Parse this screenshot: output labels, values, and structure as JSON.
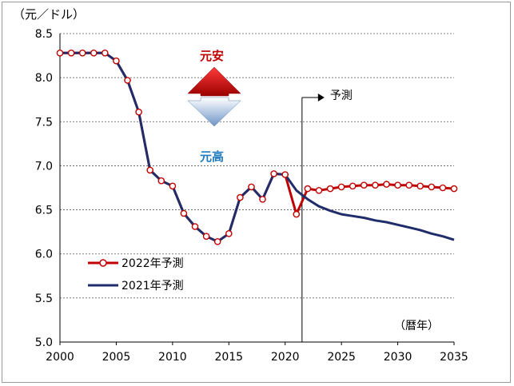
{
  "chart_data": {
    "type": "line",
    "unit_label": "（元／ドル）",
    "xlabel_note": "（暦年）",
    "xlim": [
      2000,
      2035
    ],
    "ylim": [
      5.0,
      8.5
    ],
    "xticks": [
      "2000",
      "2005",
      "2010",
      "2015",
      "2020",
      "2025",
      "2030",
      "2035"
    ],
    "yticks": [
      "5.0",
      "5.5",
      "6.0",
      "6.5",
      "7.0",
      "7.5",
      "8.0",
      "8.5"
    ],
    "grid": "horizontal dotted",
    "forecast_start": 2021.5,
    "forecast_label": "予測",
    "annotations": {
      "up": "元安",
      "down": "元高"
    },
    "series": [
      {
        "name": "2022年予測",
        "color": "#c00000",
        "marker": "open-circle",
        "x": [
          2000,
          2001,
          2002,
          2003,
          2004,
          2005,
          2006,
          2007,
          2008,
          2009,
          2010,
          2011,
          2012,
          2013,
          2014,
          2015,
          2016,
          2017,
          2018,
          2019,
          2020,
          2021,
          2022,
          2023,
          2024,
          2025,
          2026,
          2027,
          2028,
          2029,
          2030,
          2031,
          2032,
          2033,
          2034,
          2035
        ],
        "values": [
          8.28,
          8.28,
          8.28,
          8.28,
          8.28,
          8.19,
          7.97,
          7.61,
          6.95,
          6.83,
          6.77,
          6.46,
          6.31,
          6.2,
          6.14,
          6.23,
          6.64,
          6.76,
          6.62,
          6.91,
          6.9,
          6.45,
          6.74,
          6.72,
          6.74,
          6.76,
          6.77,
          6.78,
          6.78,
          6.79,
          6.78,
          6.78,
          6.77,
          6.76,
          6.75,
          6.74
        ]
      },
      {
        "name": "2021年予測",
        "color": "#1f2d6b",
        "marker": "none",
        "x": [
          2000,
          2001,
          2002,
          2003,
          2004,
          2005,
          2006,
          2007,
          2008,
          2009,
          2010,
          2011,
          2012,
          2013,
          2014,
          2015,
          2016,
          2017,
          2018,
          2019,
          2020,
          2021,
          2022,
          2023,
          2024,
          2025,
          2026,
          2027,
          2028,
          2029,
          2030,
          2031,
          2032,
          2033,
          2034,
          2035
        ],
        "values": [
          8.28,
          8.28,
          8.28,
          8.28,
          8.28,
          8.19,
          7.97,
          7.61,
          6.95,
          6.83,
          6.77,
          6.46,
          6.31,
          6.2,
          6.14,
          6.23,
          6.64,
          6.76,
          6.62,
          6.91,
          6.9,
          6.72,
          6.62,
          6.54,
          6.49,
          6.45,
          6.43,
          6.41,
          6.38,
          6.36,
          6.33,
          6.3,
          6.27,
          6.23,
          6.2,
          6.16
        ]
      }
    ]
  }
}
